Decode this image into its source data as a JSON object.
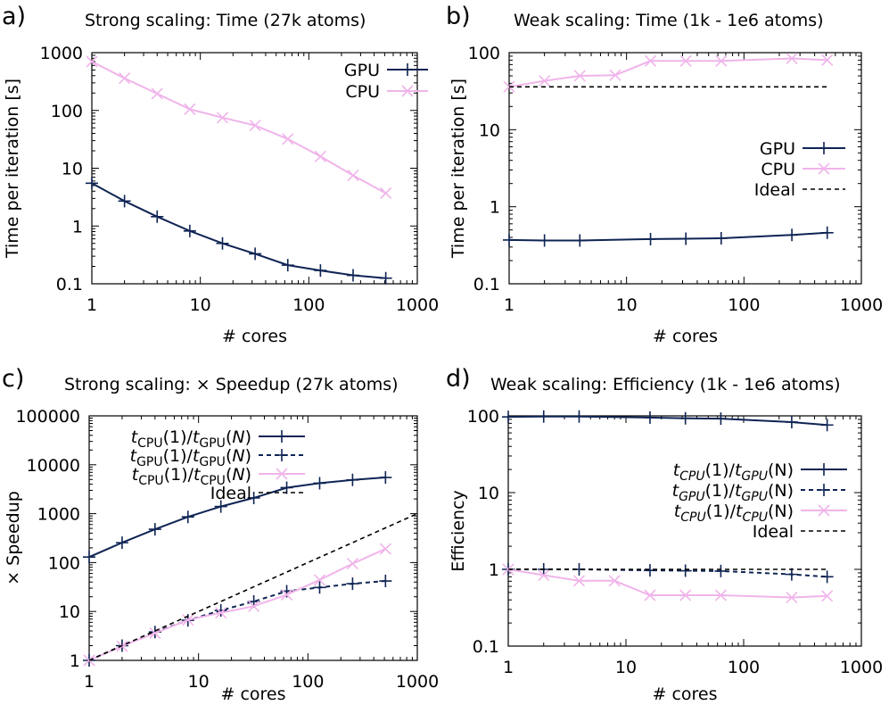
{
  "colors": {
    "gpu": "#0f2454",
    "cpu": "#f0b4ea",
    "ideal": "#000000"
  },
  "chart_data": [
    {
      "panel_label": "a)",
      "type": "line",
      "title": "Strong scaling: Time (27k atoms)",
      "xlabel": "# cores",
      "ylabel": "Time per iteration [s]",
      "xscale": "log",
      "yscale": "log",
      "xlim": [
        1,
        1000
      ],
      "ylim": [
        0.1,
        1000
      ],
      "xticks": [
        "1",
        "10",
        "100",
        "1000"
      ],
      "yticks": [
        "0.1",
        "1",
        "10",
        "100",
        "1000"
      ],
      "legend_position": "top-right",
      "series": [
        {
          "name": "GPU",
          "marker": "plus",
          "color_key": "gpu",
          "x": [
            1,
            2,
            4,
            8,
            16,
            32,
            64,
            128,
            256,
            512
          ],
          "y": [
            5.5,
            2.7,
            1.45,
            0.82,
            0.5,
            0.33,
            0.21,
            0.17,
            0.14,
            0.125
          ]
        },
        {
          "name": "CPU",
          "marker": "cross",
          "color_key": "cpu",
          "x": [
            1,
            2,
            4,
            8,
            16,
            32,
            64,
            128,
            256,
            512
          ],
          "y": [
            700,
            360,
            195,
            105,
            75,
            55,
            32,
            16,
            7.5,
            3.7
          ]
        }
      ]
    },
    {
      "panel_label": "b)",
      "type": "line",
      "title": "Weak scaling: Time (1k - 1e6 atoms)",
      "xlabel": "# cores",
      "ylabel": "Time per iteration [s]",
      "xscale": "log",
      "yscale": "log",
      "xlim": [
        1,
        1000
      ],
      "ylim": [
        0.1,
        100
      ],
      "xticks": [
        "1",
        "10",
        "100",
        "1000"
      ],
      "yticks": [
        "0.1",
        "1",
        "10",
        "100"
      ],
      "legend_position": "center-right",
      "series": [
        {
          "name": "GPU",
          "marker": "plus",
          "color_key": "gpu",
          "x": [
            1,
            2,
            4,
            16,
            32,
            64,
            256,
            512
          ],
          "y": [
            0.37,
            0.365,
            0.365,
            0.38,
            0.385,
            0.39,
            0.43,
            0.46
          ]
        },
        {
          "name": "CPU",
          "marker": "cross",
          "color_key": "cpu",
          "x": [
            1,
            2,
            4,
            8,
            16,
            32,
            64,
            256,
            512
          ],
          "y": [
            36,
            43,
            50,
            51,
            78,
            78,
            78,
            84,
            80
          ]
        },
        {
          "name": "Ideal",
          "marker": "none",
          "dashed": true,
          "color_key": "ideal",
          "x": [
            1,
            512
          ],
          "y": [
            36,
            36
          ]
        }
      ]
    },
    {
      "panel_label": "c)",
      "type": "line",
      "title": "Strong scaling: × Speedup (27k atoms)",
      "xlabel": "# cores",
      "ylabel": "× Speedup",
      "xscale": "log",
      "yscale": "log",
      "xlim": [
        1,
        1000
      ],
      "ylim": [
        1,
        100000
      ],
      "xticks": [
        "1",
        "10",
        "100",
        "1000"
      ],
      "yticks": [
        "1",
        "10",
        "100",
        "1000",
        "10000",
        "100000"
      ],
      "legend_position": "top-left",
      "series": [
        {
          "name": "t_CPU(1)/t_GPU(N)",
          "name_parts": [
            "t",
            "CPU",
            "(1)/",
            "t",
            "GPU",
            "(",
            "N",
            ")"
          ],
          "marker": "plus",
          "color_key": "gpu",
          "x": [
            1,
            2,
            4,
            8,
            16,
            32,
            64,
            128,
            256,
            512
          ],
          "y": [
            130,
            255,
            480,
            860,
            1400,
            2100,
            3400,
            4200,
            4900,
            5500
          ]
        },
        {
          "name": "t_GPU(1)/t_GPU(N)",
          "name_parts": [
            "t",
            "GPU",
            "(1)/",
            "t",
            "GPU",
            "(",
            "N",
            ")"
          ],
          "marker": "plus",
          "dashed": true,
          "color_key": "gpu",
          "x": [
            1,
            2,
            4,
            8,
            16,
            32,
            64,
            128,
            256,
            512
          ],
          "y": [
            1,
            2,
            3.8,
            6.6,
            10.5,
            16,
            26,
            31,
            37,
            42
          ]
        },
        {
          "name": "t_CPU(1)/t_CPU(N)",
          "name_parts": [
            "t",
            "CPU",
            "(1)/",
            "t",
            "CPU",
            "(",
            "N",
            ")"
          ],
          "marker": "cross",
          "color_key": "cpu",
          "x": [
            1,
            2,
            4,
            8,
            16,
            32,
            64,
            128,
            256,
            512
          ],
          "y": [
            1,
            1.95,
            3.6,
            6.7,
            9.4,
            12.8,
            22,
            44,
            95,
            190
          ]
        },
        {
          "name": "Ideal",
          "marker": "none",
          "dashed": true,
          "color_key": "ideal",
          "x": [
            1,
            1000
          ],
          "y": [
            1,
            1000
          ]
        }
      ]
    },
    {
      "panel_label": "d)",
      "type": "line",
      "title": "Weak scaling: Efficiency (1k - 1e6 atoms)",
      "xlabel": "# cores",
      "ylabel": "Efficiency",
      "xscale": "log",
      "yscale": "log",
      "xlim": [
        1,
        1000
      ],
      "ylim": [
        0.1,
        100
      ],
      "xticks": [
        "1",
        "10",
        "100",
        "1000"
      ],
      "yticks": [
        "0.1",
        "1",
        "10",
        "100"
      ],
      "legend_position": "center-right",
      "series": [
        {
          "name": "tCPU(1)/tGPU(N)",
          "name_parts": [
            "t",
            "CPU",
            "(1)/",
            "t",
            "GPU",
            "(N)"
          ],
          "marker": "plus",
          "color_key": "gpu",
          "x": [
            1,
            2,
            4,
            16,
            32,
            64,
            256,
            512
          ],
          "y": [
            97,
            98,
            98,
            95,
            93,
            92,
            83,
            76
          ]
        },
        {
          "name": "tGPU(1)/tGPU(N)",
          "name_parts": [
            "t",
            "GPU",
            "(1)/",
            "t",
            "GPU",
            "(N)"
          ],
          "marker": "plus",
          "dashed": true,
          "color_key": "gpu",
          "x": [
            1,
            2,
            4,
            16,
            32,
            64,
            256,
            512
          ],
          "y": [
            1,
            1.0,
            1.0,
            0.97,
            0.96,
            0.95,
            0.86,
            0.8
          ]
        },
        {
          "name": "tCPU(1)/tCPU(N)",
          "name_parts": [
            "t",
            "CPU",
            "(1)/",
            "t",
            "CPU",
            "(N)"
          ],
          "marker": "cross",
          "color_key": "cpu",
          "x": [
            1,
            2,
            4,
            8,
            16,
            32,
            64,
            256,
            512
          ],
          "y": [
            1,
            0.84,
            0.71,
            0.71,
            0.46,
            0.46,
            0.46,
            0.43,
            0.45
          ]
        },
        {
          "name": "Ideal",
          "marker": "none",
          "dashed": true,
          "color_key": "ideal",
          "x": [
            1,
            512
          ],
          "y": [
            1,
            1
          ]
        }
      ]
    }
  ]
}
